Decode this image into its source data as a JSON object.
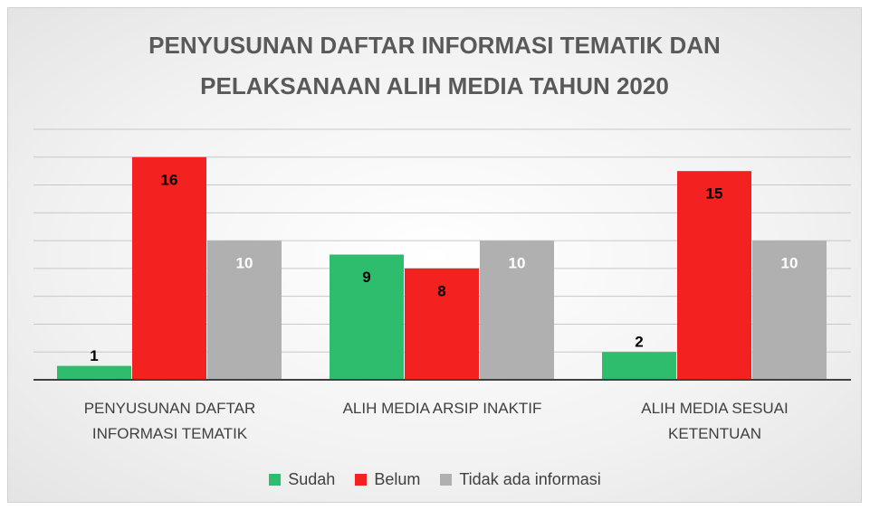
{
  "chart_data": {
    "type": "bar",
    "title": "PENYUSUNAN DAFTAR INFORMASI TEMATIK DAN PELAKSANAAN ALIH MEDIA TAHUN 2020",
    "categories": [
      "PENYUSUNAN DAFTAR INFORMASI TEMATIK",
      "ALIH MEDIA ARSIP INAKTIF",
      "ALIH MEDIA SESUAI KETENTUAN"
    ],
    "series": [
      {
        "name": "Sudah",
        "color": "#2ebd6c",
        "values": [
          1,
          9,
          2
        ]
      },
      {
        "name": "Belum",
        "color": "#f42121",
        "values": [
          16,
          8,
          15
        ]
      },
      {
        "name": "Tidak ada informasi",
        "color": "#b0b0b0",
        "values": [
          10,
          10,
          10
        ]
      }
    ],
    "ylim": [
      0,
      18
    ],
    "yticks": [
      0,
      2,
      4,
      6,
      8,
      10,
      12,
      14,
      16,
      18
    ],
    "grid": true,
    "legend": "bottom"
  }
}
